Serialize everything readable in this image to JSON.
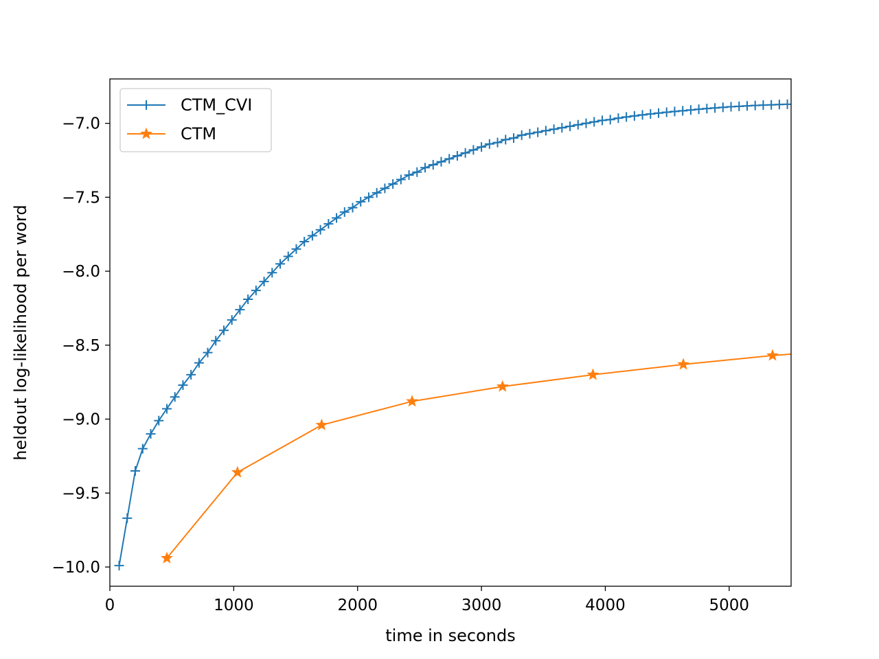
{
  "chart_data": {
    "type": "line",
    "title": "",
    "xlabel": "time in seconds",
    "ylabel": "heldout log-likelihood per word",
    "xlim": [
      0,
      5500
    ],
    "ylim": [
      -10.13,
      -6.7
    ],
    "xticks": [
      0,
      1000,
      2000,
      3000,
      4000,
      5000
    ],
    "xtick_labels": [
      "0",
      "1000",
      "2000",
      "3000",
      "4000",
      "5000"
    ],
    "yticks": [
      -10.0,
      -9.5,
      -9.0,
      -8.5,
      -8.0,
      -7.5,
      -7.0
    ],
    "ytick_labels": [
      "−10.0",
      "−9.5",
      "−9.0",
      "−8.5",
      "−8.0",
      "−7.5",
      "−7.0"
    ],
    "grid": false,
    "legend_position": "upper-left",
    "series": [
      {
        "name": "CTM_CVI",
        "color": "#1f77b4",
        "marker": "plus",
        "x": [
          75,
          140,
          205,
          265,
          330,
          395,
          460,
          525,
          590,
          655,
          720,
          790,
          855,
          920,
          985,
          1050,
          1115,
          1180,
          1245,
          1310,
          1375,
          1440,
          1505,
          1570,
          1635,
          1700,
          1765,
          1830,
          1895,
          1960,
          2025,
          2090,
          2155,
          2220,
          2285,
          2350,
          2415,
          2480,
          2545,
          2610,
          2675,
          2740,
          2805,
          2870,
          2935,
          3000,
          3065,
          3130,
          3195,
          3260,
          3325,
          3390,
          3455,
          3520,
          3585,
          3650,
          3715,
          3780,
          3845,
          3910,
          3975,
          4040,
          4105,
          4170,
          4235,
          4300,
          4365,
          4430,
          4495,
          4560,
          4625,
          4690,
          4755,
          4820,
          4885,
          4950,
          5015,
          5080,
          5145,
          5210,
          5275,
          5340,
          5405,
          5470
        ],
        "values": [
          -9.99,
          -9.67,
          -9.35,
          -9.2,
          -9.1,
          -9.01,
          -8.93,
          -8.85,
          -8.77,
          -8.7,
          -8.62,
          -8.55,
          -8.47,
          -8.4,
          -8.33,
          -8.26,
          -8.19,
          -8.13,
          -8.07,
          -8.01,
          -7.95,
          -7.9,
          -7.85,
          -7.8,
          -7.76,
          -7.72,
          -7.68,
          -7.64,
          -7.6,
          -7.57,
          -7.53,
          -7.5,
          -7.47,
          -7.44,
          -7.41,
          -7.38,
          -7.35,
          -7.33,
          -7.3,
          -7.28,
          -7.26,
          -7.24,
          -7.22,
          -7.2,
          -7.18,
          -7.16,
          -7.14,
          -7.13,
          -7.11,
          -7.1,
          -7.08,
          -7.07,
          -7.06,
          -7.05,
          -7.04,
          -7.03,
          -7.02,
          -7.01,
          -7.0,
          -6.99,
          -6.98,
          -6.975,
          -6.965,
          -6.957,
          -6.95,
          -6.943,
          -6.937,
          -6.931,
          -6.925,
          -6.92,
          -6.915,
          -6.91,
          -6.905,
          -6.9,
          -6.896,
          -6.892,
          -6.888,
          -6.885,
          -6.882,
          -6.879,
          -6.877,
          -6.875,
          -6.873,
          -6.871
        ]
      },
      {
        "name": "CTM",
        "color": "#ff7f0e",
        "marker": "star",
        "x": [
          460,
          1030,
          1710,
          2440,
          3170,
          3900,
          4630,
          5350
        ],
        "values": [
          -9.94,
          -9.36,
          -9.04,
          -8.88,
          -8.78,
          -8.7,
          -8.63,
          -8.57
        ],
        "continues_past_xlim_to": -8.56
      }
    ]
  }
}
